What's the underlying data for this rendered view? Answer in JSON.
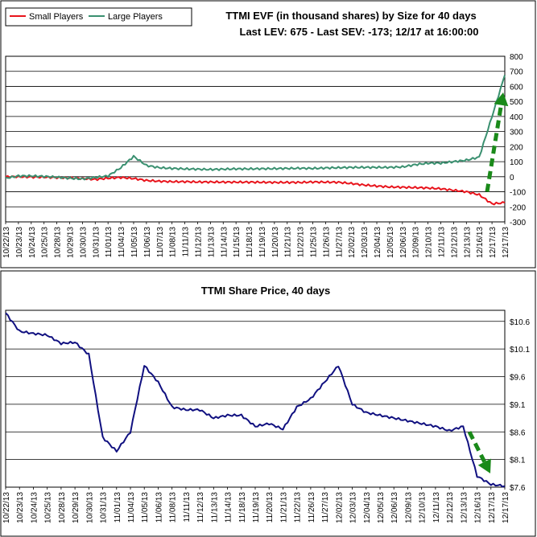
{
  "chart_data": [
    {
      "type": "line",
      "title": "TTMI EVF (in thousand shares) by Size for 40 days",
      "subtitle": "Last LEV: 675 - Last SEV: -173; 12/17 at 16:00:00",
      "ylim": [
        -300,
        800
      ],
      "yticks": [
        "800",
        "700",
        "600",
        "500",
        "400",
        "300",
        "200",
        "100",
        "0",
        "-100",
        "-200",
        "-300"
      ],
      "categories": [
        "10/22/13",
        "10/23/13",
        "10/24/13",
        "10/25/13",
        "10/28/13",
        "10/29/13",
        "10/30/13",
        "10/31/13",
        "11/01/13",
        "11/04/13",
        "11/05/13",
        "11/06/13",
        "11/07/13",
        "11/08/13",
        "11/11/13",
        "11/12/13",
        "11/13/13",
        "11/14/13",
        "11/15/13",
        "11/18/13",
        "11/19/13",
        "11/20/13",
        "11/21/13",
        "11/22/13",
        "11/25/13",
        "11/26/13",
        "11/27/13",
        "12/02/13",
        "12/03/13",
        "12/04/13",
        "12/05/13",
        "12/06/13",
        "12/09/13",
        "12/10/13",
        "12/11/13",
        "12/12/13",
        "12/13/13",
        "12/16/13",
        "12/17/13",
        "12/17/13"
      ],
      "grid": true,
      "legend": "top-left",
      "series": [
        {
          "name": "Small Players",
          "color": "#e8141c",
          "values": [
            0,
            0,
            -2,
            -3,
            -6,
            -8,
            -12,
            -18,
            -10,
            -5,
            -12,
            -25,
            -30,
            -33,
            -33,
            -35,
            -35,
            -36,
            -36,
            -36,
            -37,
            -38,
            -38,
            -38,
            -35,
            -36,
            -37,
            -45,
            -55,
            -62,
            -68,
            -70,
            -72,
            -75,
            -80,
            -90,
            -100,
            -120,
            -180,
            -173
          ]
        },
        {
          "name": "Large Players",
          "color": "#3a9070",
          "values": [
            -10,
            5,
            5,
            2,
            -3,
            -10,
            -15,
            -5,
            5,
            60,
            135,
            75,
            60,
            55,
            52,
            50,
            48,
            50,
            52,
            52,
            53,
            54,
            55,
            56,
            55,
            58,
            60,
            62,
            62,
            62,
            62,
            65,
            80,
            90,
            90,
            100,
            110,
            130,
            400,
            675
          ]
        }
      ],
      "annotation": {
        "arrow": "up",
        "color": "#1a8a1a"
      }
    },
    {
      "type": "line",
      "title": "TTMI Share Price, 40 days",
      "ylim": [
        7.6,
        10.8
      ],
      "yticks": [
        "$10.6",
        "$10.1",
        "$9.6",
        "$9.1",
        "$8.6",
        "$8.1",
        "$7.6"
      ],
      "categories": [
        "10/22/13",
        "10/23/13",
        "10/24/13",
        "10/25/13",
        "10/28/13",
        "10/29/13",
        "10/30/13",
        "10/31/13",
        "11/01/13",
        "11/04/13",
        "11/05/13",
        "11/06/13",
        "11/08/13",
        "11/11/13",
        "11/12/13",
        "11/13/13",
        "11/14/13",
        "11/18/13",
        "11/19/13",
        "11/20/13",
        "11/21/13",
        "11/22/13",
        "11/26/13",
        "11/27/13",
        "12/02/13",
        "12/03/13",
        "12/04/13",
        "12/05/13",
        "12/06/13",
        "12/09/13",
        "12/10/13",
        "12/11/13",
        "12/12/13",
        "12/13/13",
        "12/16/13",
        "12/17/13",
        "12/17/13"
      ],
      "grid": true,
      "series": [
        {
          "name": "",
          "color": "#101080",
          "values": [
            10.75,
            10.42,
            10.38,
            10.35,
            10.2,
            10.22,
            10.0,
            8.5,
            8.25,
            8.6,
            9.8,
            9.5,
            9.05,
            9.0,
            9.0,
            8.85,
            8.9,
            8.9,
            8.7,
            8.75,
            8.65,
            9.05,
            9.2,
            9.5,
            9.8,
            9.1,
            8.95,
            8.9,
            8.85,
            8.8,
            8.75,
            8.7,
            8.62,
            8.7,
            7.8,
            7.65,
            7.62
          ]
        }
      ],
      "annotation": {
        "arrow": "down",
        "color": "#1a8a1a"
      }
    }
  ]
}
